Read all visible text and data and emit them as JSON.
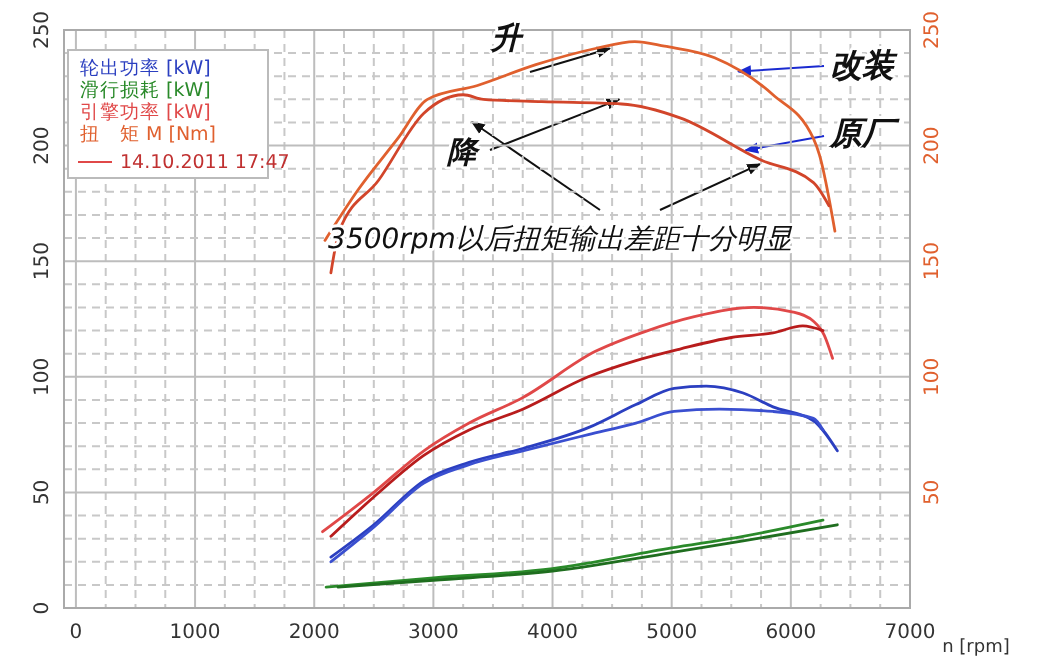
{
  "chart_data": {
    "type": "line",
    "xlabel": "n [rpm]",
    "xlim": [
      -100,
      7000
    ],
    "xticks": [
      0,
      1000,
      2000,
      3000,
      4000,
      5000,
      6000,
      7000
    ],
    "ylim": [
      0,
      250
    ],
    "yticks": [
      0,
      50,
      100,
      150,
      200,
      250
    ],
    "y2lim": [
      0,
      250
    ],
    "y2ticks": [
      50,
      100,
      150,
      200,
      250
    ],
    "grid": true,
    "legend": "top left",
    "annotations": [
      "14.10.2011 17:47",
      {
        "text": "升",
        "x": 4480,
        "y": 242
      },
      {
        "text": "降",
        "x": 4560,
        "y": 220
      },
      {
        "text": "改装",
        "x": 5560,
        "y": 232
      },
      {
        "text": "原厂",
        "x": 5620,
        "y": 198
      },
      {
        "text": "3500rpm以后扭矩输出差距十分明显",
        "x": 5740,
        "y": 192
      }
    ],
    "series": [
      {
        "name": "轮出功率 [kW]",
        "color": "#2b3fc0",
        "x": [
          2140,
          2500,
          2920,
          3300,
          3750,
          4300,
          4700,
          5020,
          5290,
          5600,
          5850,
          6190,
          6390
        ],
        "values": [
          22,
          36,
          55,
          63,
          69,
          78,
          88,
          95,
          96,
          93,
          87,
          81,
          68
        ]
      },
      {
        "color": "#3a4fd0",
        "x": [
          2140,
          2500,
          2920,
          3300,
          3750,
          4300,
          4700,
          5020,
          5400,
          5850,
          6190,
          6270
        ],
        "values": [
          20,
          35,
          54,
          62,
          68,
          75,
          80,
          85,
          86,
          85,
          82,
          77
        ]
      },
      {
        "name": "滑行损耗 [kW]",
        "color": "#2a8a2a",
        "x": [
          2100,
          3000,
          4000,
          5000,
          5600,
          6270
        ],
        "values": [
          9,
          13,
          17,
          26,
          31,
          38
        ]
      },
      {
        "color": "#1f6e1f",
        "x": [
          2200,
          3000,
          4000,
          5000,
          5600,
          6390
        ],
        "values": [
          9,
          12,
          16,
          24,
          29,
          36
        ]
      },
      {
        "name": "引擎功率 [kW]",
        "color": "#e04848",
        "x": [
          2070,
          2500,
          2920,
          3300,
          3750,
          4360,
          4800,
          5190,
          5690,
          6020,
          6190,
          6280,
          6350
        ],
        "values": [
          33,
          50,
          68,
          80,
          91,
          111,
          120,
          126,
          130,
          128,
          124,
          118,
          108
        ]
      },
      {
        "color": "#b81c1c",
        "x": [
          2140,
          2500,
          2920,
          3300,
          3750,
          4300,
          4700,
          5070,
          5500,
          5850,
          6100,
          6270
        ],
        "values": [
          31,
          48,
          66,
          77,
          86,
          100,
          107,
          112,
          117,
          119,
          122,
          120
        ]
      },
      {
        "name": "扭　矩 M [Nm]",
        "color": "#e0602e",
        "axis": "y2",
        "x": [
          2090,
          2370,
          2700,
          2950,
          3370,
          3860,
          4360,
          4690,
          4940,
          5360,
          5850,
          6190,
          6240,
          6370
        ],
        "values": [
          159,
          181,
          203,
          220,
          226,
          235,
          242,
          245,
          243,
          238,
          222,
          203,
          196,
          163
        ]
      },
      {
        "color": "#d2452a",
        "axis": "y2",
        "x": [
          2140,
          2210,
          2540,
          2920,
          3250,
          3420,
          3910,
          4580,
          5070,
          5740,
          6190,
          6320
        ],
        "values": [
          145,
          163,
          185,
          214,
          222,
          220,
          219,
          218,
          212,
          194,
          184,
          174
        ]
      }
    ]
  }
}
